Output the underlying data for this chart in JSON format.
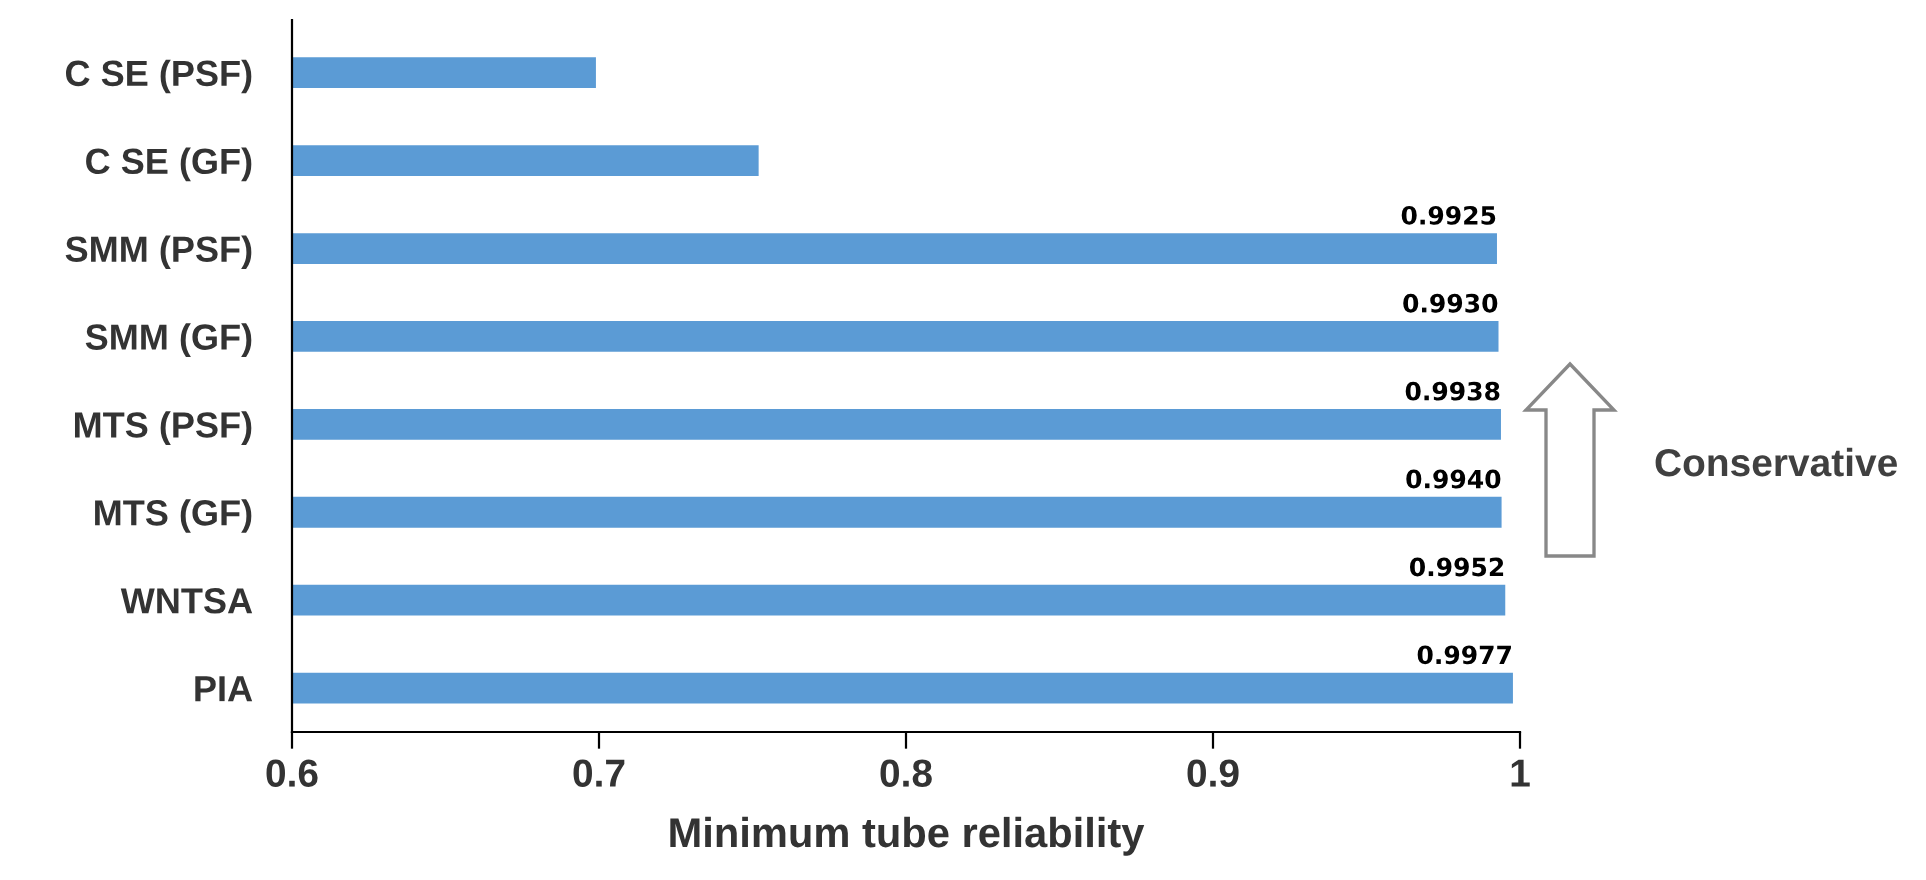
{
  "chart_data": {
    "type": "bar",
    "orientation": "horizontal",
    "categories": [
      "C SE (PSF)",
      "C SE (GF)",
      "SMM (PSF)",
      "SMM (GF)",
      "MTS (PSF)",
      "MTS (GF)",
      "WNTSA",
      "PIA"
    ],
    "values": [
      0.699,
      0.752,
      0.9925,
      0.993,
      0.9938,
      0.994,
      0.9952,
      0.9977
    ],
    "value_labels": [
      null,
      null,
      "0.9925",
      "0.9930",
      "0.9938",
      "0.9940",
      "0.9952",
      "0.9977"
    ],
    "color": "#5b9bd5",
    "xlabel": "Minimum tube reliability",
    "xlim": [
      0.6,
      1
    ],
    "xticks": [
      0.6,
      0.7,
      0.8,
      0.9,
      1
    ],
    "annotations": [
      "Conservative"
    ],
    "grid": false,
    "legend": false
  }
}
